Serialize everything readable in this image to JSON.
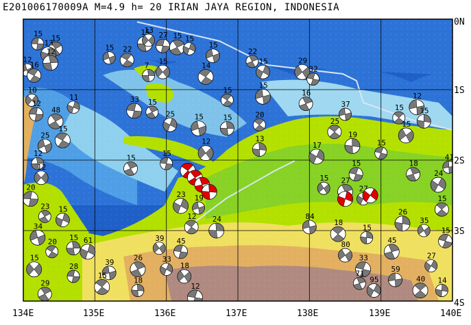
{
  "title": "E201006170009A M=4.9 h= 20 IRIAN JAYA REGION, INDONESIA",
  "lon_labels": [
    "134E",
    "135E",
    "136E",
    "137E",
    "138E",
    "139E",
    "140E"
  ],
  "lat_labels": [
    "0N",
    "1S",
    "2S",
    "3S",
    "4S"
  ],
  "extent": {
    "lon": [
      134,
      140
    ],
    "lat": [
      0,
      -4
    ]
  },
  "colors": {
    "deep_sea": "#1f5fc8",
    "mid_sea": "#3b8be0",
    "shallow_sea": "#7fc3ea",
    "shelf": "#bfe6f2",
    "lowland": "#b4e000",
    "lowland2": "#7fcf2a",
    "upland": "#f0e060",
    "hill": "#e2b060",
    "mountain": "#b08a80",
    "highlight": "#e00000",
    "mechanism_dark": "#787878"
  },
  "events": [
    {
      "lon": 134.2,
      "lat": -0.35,
      "mag": "15"
    },
    {
      "lon": 134.45,
      "lat": -0.42,
      "mag": "15"
    },
    {
      "lon": 134.35,
      "lat": -0.5,
      "mag": "13"
    },
    {
      "lon": 134.05,
      "lat": -0.72,
      "mag": "12"
    },
    {
      "lon": 134.15,
      "lat": -0.8,
      "mag": "16"
    },
    {
      "lon": 134.38,
      "lat": -0.62,
      "mag": "12"
    },
    {
      "lon": 134.12,
      "lat": -1.15,
      "mag": "10"
    },
    {
      "lon": 134.18,
      "lat": -1.35,
      "mag": "12"
    },
    {
      "lon": 134.45,
      "lat": -1.45,
      "mag": "48"
    },
    {
      "lon": 134.7,
      "lat": -1.25,
      "mag": "11"
    },
    {
      "lon": 134.3,
      "lat": -1.8,
      "mag": "25"
    },
    {
      "lon": 134.55,
      "lat": -1.72,
      "mag": "15"
    },
    {
      "lon": 134.2,
      "lat": -2.05,
      "mag": "12"
    },
    {
      "lon": 134.25,
      "lat": -2.25,
      "mag": "12"
    },
    {
      "lon": 134.1,
      "lat": -2.55,
      "mag": "20"
    },
    {
      "lon": 134.3,
      "lat": -2.8,
      "mag": "23"
    },
    {
      "lon": 134.55,
      "lat": -2.85,
      "mag": "15"
    },
    {
      "lon": 134.2,
      "lat": -3.1,
      "mag": "34"
    },
    {
      "lon": 134.4,
      "lat": -3.3,
      "mag": "20"
    },
    {
      "lon": 134.7,
      "lat": -3.25,
      "mag": "15"
    },
    {
      "lon": 134.15,
      "lat": -3.55,
      "mag": "15"
    },
    {
      "lon": 134.7,
      "lat": -3.65,
      "mag": "28"
    },
    {
      "lon": 134.3,
      "lat": -3.9,
      "mag": "29"
    },
    {
      "lon": 134.9,
      "lat": -3.3,
      "mag": "61"
    },
    {
      "lon": 135.2,
      "lat": -0.55,
      "mag": "15"
    },
    {
      "lon": 135.45,
      "lat": -0.58,
      "mag": "22"
    },
    {
      "lon": 135.7,
      "lat": -0.35,
      "mag": "15"
    },
    {
      "lon": 135.75,
      "lat": -0.3,
      "mag": "13"
    },
    {
      "lon": 135.95,
      "lat": -0.38,
      "mag": "27"
    },
    {
      "lon": 136.15,
      "lat": -0.4,
      "mag": "15"
    },
    {
      "lon": 136.32,
      "lat": -0.42,
      "mag": "15"
    },
    {
      "lon": 136.65,
      "lat": -0.52,
      "mag": "15"
    },
    {
      "lon": 136.55,
      "lat": -0.82,
      "mag": "14"
    },
    {
      "lon": 135.75,
      "lat": -0.8,
      "mag": "7"
    },
    {
      "lon": 135.95,
      "lat": -0.75,
      "mag": "15"
    },
    {
      "lon": 135.55,
      "lat": -1.3,
      "mag": "33"
    },
    {
      "lon": 135.8,
      "lat": -1.32,
      "mag": "15"
    },
    {
      "lon": 136.05,
      "lat": -1.5,
      "mag": "25"
    },
    {
      "lon": 136.45,
      "lat": -1.55,
      "mag": "15"
    },
    {
      "lon": 136.85,
      "lat": -1.15,
      "mag": "15"
    },
    {
      "lon": 136.85,
      "lat": -1.55,
      "mag": "15"
    },
    {
      "lon": 136.55,
      "lat": -1.9,
      "mag": "12"
    },
    {
      "lon": 136.0,
      "lat": -2.05,
      "mag": "15"
    },
    {
      "lon": 135.5,
      "lat": -2.12,
      "mag": "15"
    },
    {
      "lon": 136.2,
      "lat": -2.65,
      "mag": "23"
    },
    {
      "lon": 136.45,
      "lat": -2.68,
      "mag": "19"
    },
    {
      "lon": 136.35,
      "lat": -2.95,
      "mag": "12"
    },
    {
      "lon": 136.7,
      "lat": -3.0,
      "mag": "24"
    },
    {
      "lon": 135.9,
      "lat": -3.25,
      "mag": "39"
    },
    {
      "lon": 136.2,
      "lat": -3.3,
      "mag": "45"
    },
    {
      "lon": 135.6,
      "lat": -3.55,
      "mag": "26"
    },
    {
      "lon": 136.0,
      "lat": -3.55,
      "mag": "33"
    },
    {
      "lon": 135.2,
      "lat": -3.6,
      "mag": "39"
    },
    {
      "lon": 135.1,
      "lat": -3.8,
      "mag": "15"
    },
    {
      "lon": 135.6,
      "lat": -3.85,
      "mag": "18"
    },
    {
      "lon": 136.25,
      "lat": -3.65,
      "mag": "18"
    },
    {
      "lon": 136.4,
      "lat": -3.95,
      "mag": "12"
    },
    {
      "lon": 137.2,
      "lat": -0.6,
      "mag": "22"
    },
    {
      "lon": 137.35,
      "lat": -0.75,
      "mag": "15"
    },
    {
      "lon": 137.35,
      "lat": -1.1,
      "mag": "15"
    },
    {
      "lon": 137.3,
      "lat": -1.5,
      "mag": "20"
    },
    {
      "lon": 137.3,
      "lat": -1.85,
      "mag": "13"
    },
    {
      "lon": 137.9,
      "lat": -0.75,
      "mag": "29"
    },
    {
      "lon": 138.05,
      "lat": -0.85,
      "mag": "32"
    },
    {
      "lon": 137.95,
      "lat": -1.2,
      "mag": "16"
    },
    {
      "lon": 138.1,
      "lat": -1.95,
      "mag": "17"
    },
    {
      "lon": 138.5,
      "lat": -1.35,
      "mag": "37"
    },
    {
      "lon": 138.35,
      "lat": -1.6,
      "mag": "25"
    },
    {
      "lon": 138.6,
      "lat": -1.8,
      "mag": "19"
    },
    {
      "lon": 138.2,
      "lat": -2.4,
      "mag": "15"
    },
    {
      "lon": 138.65,
      "lat": -2.2,
      "mag": "15"
    },
    {
      "lon": 138.5,
      "lat": -2.45,
      "mag": "27"
    },
    {
      "lon": 138.75,
      "lat": -2.55,
      "mag": "27"
    },
    {
      "lon": 138.0,
      "lat": -2.95,
      "mag": "84"
    },
    {
      "lon": 138.4,
      "lat": -3.05,
      "mag": "18"
    },
    {
      "lon": 138.8,
      "lat": -3.1,
      "mag": "15"
    },
    {
      "lon": 138.5,
      "lat": -3.35,
      "mag": "80"
    },
    {
      "lon": 138.75,
      "lat": -3.55,
      "mag": "33"
    },
    {
      "lon": 138.7,
      "lat": -3.75,
      "mag": "71"
    },
    {
      "lon": 138.9,
      "lat": -3.85,
      "mag": "95"
    },
    {
      "lon": 139.5,
      "lat": -1.25,
      "mag": "12"
    },
    {
      "lon": 139.25,
      "lat": -1.4,
      "mag": "15"
    },
    {
      "lon": 139.6,
      "lat": -1.45,
      "mag": "15"
    },
    {
      "lon": 139.35,
      "lat": -1.65,
      "mag": "15"
    },
    {
      "lon": 139.0,
      "lat": -1.9,
      "mag": "15"
    },
    {
      "lon": 139.45,
      "lat": -2.2,
      "mag": "18"
    },
    {
      "lon": 139.8,
      "lat": -2.35,
      "mag": "24"
    },
    {
      "lon": 139.95,
      "lat": -2.1,
      "mag": "41"
    },
    {
      "lon": 139.85,
      "lat": -2.7,
      "mag": "15"
    },
    {
      "lon": 139.3,
      "lat": -2.9,
      "mag": "26"
    },
    {
      "lon": 139.6,
      "lat": -3.0,
      "mag": "35"
    },
    {
      "lon": 139.9,
      "lat": -3.15,
      "mag": "15"
    },
    {
      "lon": 139.15,
      "lat": -3.3,
      "mag": "45"
    },
    {
      "lon": 139.7,
      "lat": -3.5,
      "mag": "27"
    },
    {
      "lon": 139.2,
      "lat": -3.7,
      "mag": "59"
    },
    {
      "lon": 139.55,
      "lat": -3.85,
      "mag": "40"
    },
    {
      "lon": 139.85,
      "lat": -3.85,
      "mag": "14"
    }
  ],
  "highlighted_events": [
    {
      "lon": 136.3,
      "lat": -2.15
    },
    {
      "lon": 136.4,
      "lat": -2.25
    },
    {
      "lon": 136.5,
      "lat": -2.35
    },
    {
      "lon": 136.6,
      "lat": -2.45
    },
    {
      "lon": 138.5,
      "lat": -2.55
    },
    {
      "lon": 138.85,
      "lat": -2.5
    }
  ]
}
